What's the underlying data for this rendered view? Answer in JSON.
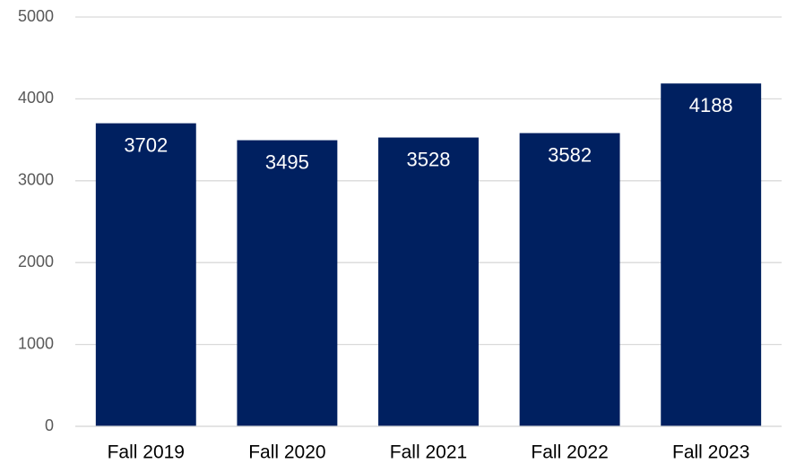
{
  "chart_data": {
    "type": "bar",
    "categories": [
      "Fall 2019",
      "Fall 2020",
      "Fall 2021",
      "Fall 2022",
      "Fall 2023"
    ],
    "values": [
      3702,
      3495,
      3528,
      3582,
      4188
    ],
    "color": "#002060",
    "ylim": [
      0,
      5000
    ],
    "yticks": [
      0,
      1000,
      2000,
      3000,
      4000,
      5000
    ],
    "grid": true,
    "data_labels": true
  }
}
